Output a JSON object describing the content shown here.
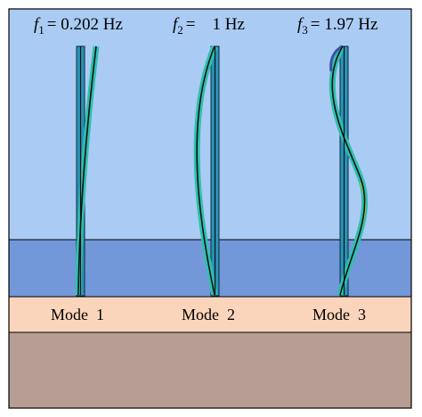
{
  "figure": {
    "colors": {
      "air": "#aacbf3",
      "water": "#7398d9",
      "mudline": "#fbd5bb",
      "soil": "#b79d93",
      "pile_undeformed": "#2a93b8",
      "pile_deformed_fill": "#2fc0b0",
      "pile_centerline": "#111111",
      "border": "#000000"
    },
    "modes": [
      {
        "freq_symbol": "f",
        "freq_index": "1",
        "freq_value": "= 0.202 Hz",
        "label": "Mode  1"
      },
      {
        "freq_symbol": "f",
        "freq_index": "2",
        "freq_value": "=    1 Hz",
        "label": "Mode  2"
      },
      {
        "freq_symbol": "f",
        "freq_index": "3",
        "freq_value": "= 1.97 Hz",
        "label": "Mode  3"
      }
    ]
  }
}
